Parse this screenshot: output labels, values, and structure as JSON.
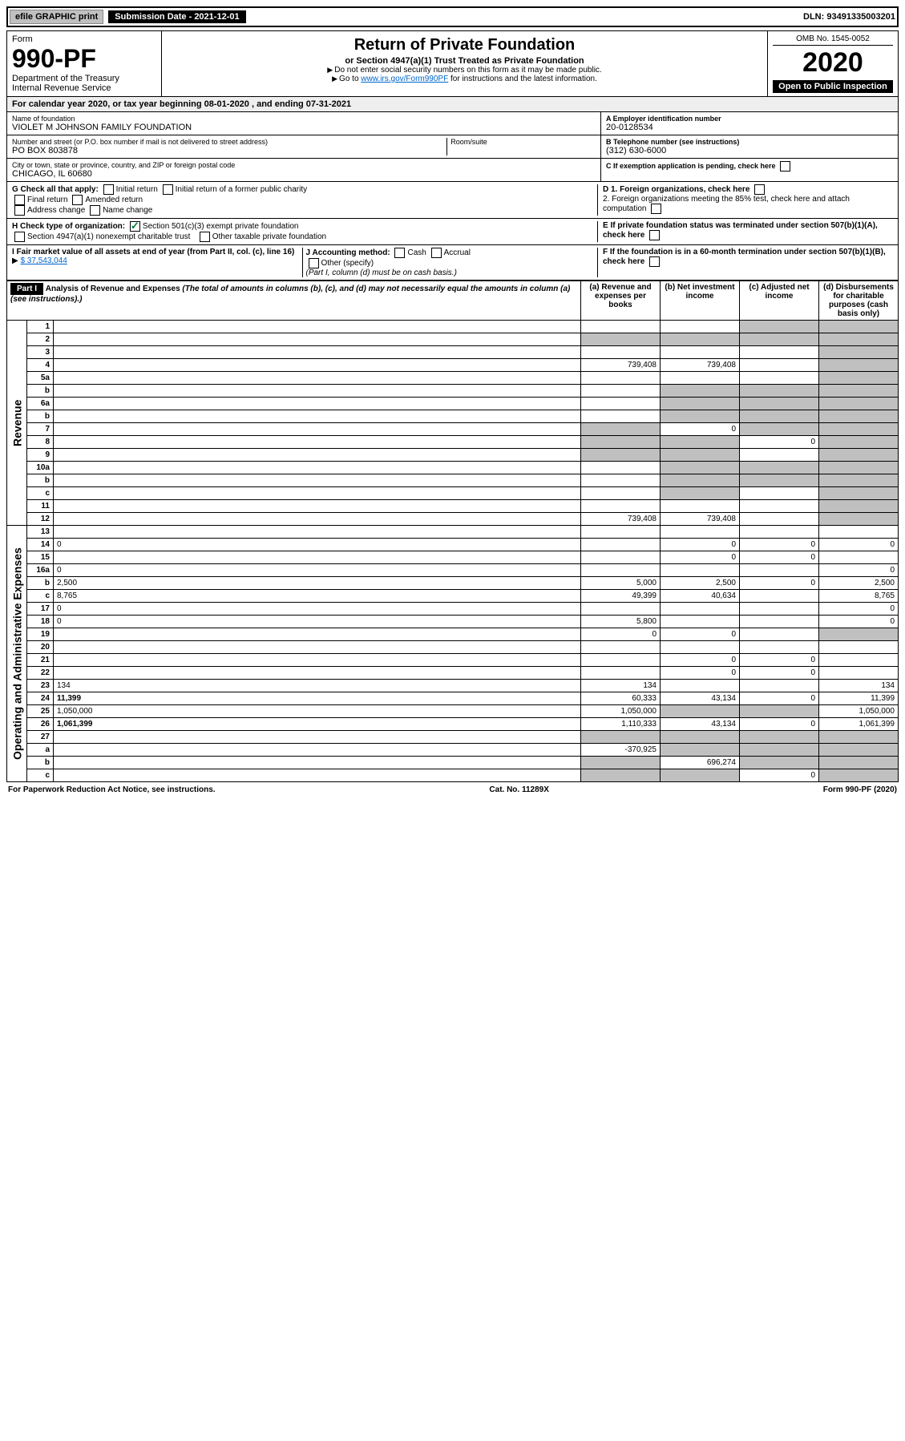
{
  "top": {
    "efile": "efile GRAPHIC print",
    "submission": "Submission Date - 2021-12-01",
    "dln": "DLN: 93491335003201"
  },
  "header": {
    "form_label": "Form",
    "form_num": "990-PF",
    "dept": "Department of the Treasury",
    "irs": "Internal Revenue Service",
    "title": "Return of Private Foundation",
    "subtitle": "or Section 4947(a)(1) Trust Treated as Private Foundation",
    "note1": "Do not enter social security numbers on this form as it may be made public.",
    "note2": "Go to www.irs.gov/Form990PF for instructions and the latest information.",
    "omb": "OMB No. 1545-0052",
    "year": "2020",
    "open": "Open to Public Inspection"
  },
  "cal_year": "For calendar year 2020, or tax year beginning 08-01-2020          , and ending 07-31-2021",
  "info": {
    "name_lbl": "Name of foundation",
    "name": "VIOLET M JOHNSON FAMILY FOUNDATION",
    "addr_lbl": "Number and street (or P.O. box number if mail is not delivered to street address)",
    "addr": "PO BOX 803878",
    "room_lbl": "Room/suite",
    "city_lbl": "City or town, state or province, country, and ZIP or foreign postal code",
    "city": "CHICAGO, IL  60680",
    "ein_lbl": "A Employer identification number",
    "ein": "20-0128534",
    "tel_lbl": "B Telephone number (see instructions)",
    "tel": "(312) 630-6000",
    "c_lbl": "C If exemption application is pending, check here"
  },
  "checks": {
    "g_lbl": "G Check all that apply:",
    "g_opts": [
      "Initial return",
      "Initial return of a former public charity",
      "Final return",
      "Amended return",
      "Address change",
      "Name change"
    ],
    "h_lbl": "H Check type of organization:",
    "h_opt1": "Section 501(c)(3) exempt private foundation",
    "h_opt2": "Section 4947(a)(1) nonexempt charitable trust",
    "h_opt3": "Other taxable private foundation",
    "i_lbl": "I Fair market value of all assets at end of year (from Part II, col. (c), line 16)",
    "i_val": "$  37,543,044",
    "j_lbl": "J Accounting method:",
    "j_opts": [
      "Cash",
      "Accrual",
      "Other (specify)"
    ],
    "j_note": "(Part I, column (d) must be on cash basis.)",
    "d1": "D 1. Foreign organizations, check here",
    "d2": "2. Foreign organizations meeting the 85% test, check here and attach computation",
    "e": "E If private foundation status was terminated under section 507(b)(1)(A), check here",
    "f": "F If the foundation is in a 60-month termination under section 507(b)(1)(B), check here"
  },
  "part1": {
    "header": "Part I",
    "title": "Analysis of Revenue and Expenses",
    "subtitle": "(The total of amounts in columns (b), (c), and (d) may not necessarily equal the amounts in column (a) (see instructions).)",
    "cols": [
      "(a) Revenue and expenses per books",
      "(b) Net investment income",
      "(c) Adjusted net income",
      "(d) Disbursements for charitable purposes (cash basis only)"
    ],
    "side_rev": "Revenue",
    "side_exp": "Operating and Administrative Expenses",
    "rows": [
      {
        "n": "1",
        "d": "",
        "a": "",
        "b": "",
        "c": "",
        "sc": [
          "",
          "",
          "sh",
          "sh"
        ]
      },
      {
        "n": "2",
        "d": "",
        "a": "",
        "b": "",
        "c": "",
        "sc": [
          "sh",
          "sh",
          "sh",
          "sh"
        ]
      },
      {
        "n": "3",
        "d": "",
        "a": "",
        "b": "",
        "c": "",
        "sc": [
          "",
          "",
          "",
          "sh"
        ]
      },
      {
        "n": "4",
        "d": "",
        "a": "739,408",
        "b": "739,408",
        "c": "",
        "sc": [
          "",
          "",
          "",
          "sh"
        ]
      },
      {
        "n": "5a",
        "d": "",
        "a": "",
        "b": "",
        "c": "",
        "sc": [
          "",
          "",
          "",
          "sh"
        ]
      },
      {
        "n": "b",
        "d": "",
        "a": "",
        "b": "",
        "c": "",
        "sc": [
          "",
          "sh",
          "sh",
          "sh"
        ]
      },
      {
        "n": "6a",
        "d": "",
        "a": "",
        "b": "",
        "c": "",
        "sc": [
          "",
          "sh",
          "sh",
          "sh"
        ]
      },
      {
        "n": "b",
        "d": "",
        "a": "",
        "b": "",
        "c": "",
        "sc": [
          "",
          "sh",
          "sh",
          "sh"
        ]
      },
      {
        "n": "7",
        "d": "",
        "a": "",
        "b": "0",
        "c": "",
        "sc": [
          "sh",
          "",
          "sh",
          "sh"
        ]
      },
      {
        "n": "8",
        "d": "",
        "a": "",
        "b": "",
        "c": "0",
        "sc": [
          "sh",
          "sh",
          "",
          "sh"
        ]
      },
      {
        "n": "9",
        "d": "",
        "a": "",
        "b": "",
        "c": "",
        "sc": [
          "sh",
          "sh",
          "",
          "sh"
        ]
      },
      {
        "n": "10a",
        "d": "",
        "a": "",
        "b": "",
        "c": "",
        "sc": [
          "",
          "sh",
          "sh",
          "sh"
        ]
      },
      {
        "n": "b",
        "d": "",
        "a": "",
        "b": "",
        "c": "",
        "sc": [
          "",
          "sh",
          "sh",
          "sh"
        ]
      },
      {
        "n": "c",
        "d": "",
        "a": "",
        "b": "",
        "c": "",
        "sc": [
          "",
          "sh",
          "",
          "sh"
        ]
      },
      {
        "n": "11",
        "d": "",
        "a": "",
        "b": "",
        "c": "",
        "sc": [
          "",
          "",
          "",
          "sh"
        ]
      },
      {
        "n": "12",
        "d": "",
        "a": "739,408",
        "b": "739,408",
        "c": "",
        "sc": [
          "",
          "",
          "",
          "sh"
        ],
        "bold": true
      },
      {
        "n": "13",
        "d": "",
        "a": "",
        "b": "",
        "c": "",
        "sc": [
          "",
          "",
          "",
          ""
        ]
      },
      {
        "n": "14",
        "d": "0",
        "a": "",
        "b": "0",
        "c": "0",
        "sc": [
          "",
          "",
          "",
          ""
        ]
      },
      {
        "n": "15",
        "d": "",
        "a": "",
        "b": "0",
        "c": "0",
        "sc": [
          "",
          "",
          "",
          ""
        ]
      },
      {
        "n": "16a",
        "d": "0",
        "a": "",
        "b": "",
        "c": "",
        "sc": [
          "",
          "",
          "",
          ""
        ]
      },
      {
        "n": "b",
        "d": "2,500",
        "a": "5,000",
        "b": "2,500",
        "c": "0",
        "sc": [
          "",
          "",
          "",
          ""
        ]
      },
      {
        "n": "c",
        "d": "8,765",
        "a": "49,399",
        "b": "40,634",
        "c": "",
        "sc": [
          "",
          "",
          "",
          ""
        ]
      },
      {
        "n": "17",
        "d": "0",
        "a": "",
        "b": "",
        "c": "",
        "sc": [
          "",
          "",
          "",
          ""
        ]
      },
      {
        "n": "18",
        "d": "0",
        "a": "5,800",
        "b": "",
        "c": "",
        "sc": [
          "",
          "",
          "",
          ""
        ]
      },
      {
        "n": "19",
        "d": "",
        "a": "0",
        "b": "0",
        "c": "",
        "sc": [
          "",
          "",
          "",
          "sh"
        ]
      },
      {
        "n": "20",
        "d": "",
        "a": "",
        "b": "",
        "c": "",
        "sc": [
          "",
          "",
          "",
          ""
        ]
      },
      {
        "n": "21",
        "d": "",
        "a": "",
        "b": "0",
        "c": "0",
        "sc": [
          "",
          "",
          "",
          ""
        ]
      },
      {
        "n": "22",
        "d": "",
        "a": "",
        "b": "0",
        "c": "0",
        "sc": [
          "",
          "",
          "",
          ""
        ]
      },
      {
        "n": "23",
        "d": "134",
        "a": "134",
        "b": "",
        "c": "",
        "sc": [
          "",
          "",
          "",
          ""
        ]
      },
      {
        "n": "24",
        "d": "11,399",
        "a": "60,333",
        "b": "43,134",
        "c": "0",
        "sc": [
          "",
          "",
          "",
          ""
        ],
        "bold": true
      },
      {
        "n": "25",
        "d": "1,050,000",
        "a": "1,050,000",
        "b": "",
        "c": "",
        "sc": [
          "",
          "sh",
          "sh",
          ""
        ]
      },
      {
        "n": "26",
        "d": "1,061,399",
        "a": "1,110,333",
        "b": "43,134",
        "c": "0",
        "sc": [
          "",
          "",
          "",
          ""
        ],
        "bold": true
      },
      {
        "n": "27",
        "d": "",
        "a": "",
        "b": "",
        "c": "",
        "sc": [
          "sh",
          "sh",
          "sh",
          "sh"
        ]
      },
      {
        "n": "a",
        "d": "",
        "a": "-370,925",
        "b": "",
        "c": "",
        "sc": [
          "",
          "sh",
          "sh",
          "sh"
        ],
        "bold": true
      },
      {
        "n": "b",
        "d": "",
        "a": "",
        "b": "696,274",
        "c": "",
        "sc": [
          "sh",
          "",
          "sh",
          "sh"
        ],
        "bold": true
      },
      {
        "n": "c",
        "d": "",
        "a": "",
        "b": "",
        "c": "0",
        "sc": [
          "sh",
          "sh",
          "",
          "sh"
        ],
        "bold": true
      }
    ]
  },
  "footer": {
    "left": "For Paperwork Reduction Act Notice, see instructions.",
    "center": "Cat. No. 11289X",
    "right": "Form 990-PF (2020)"
  }
}
